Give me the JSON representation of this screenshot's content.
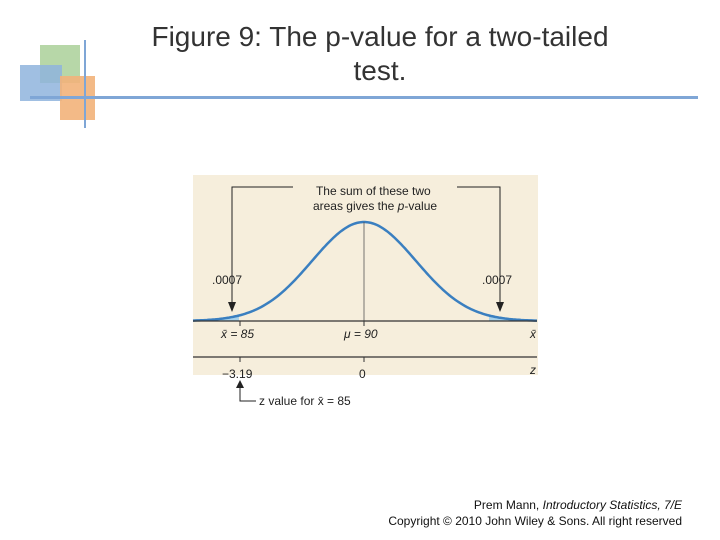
{
  "title": "Figure 9: The p-value for a two-tailed test.",
  "figure": {
    "callout": {
      "line1": "The sum of these two",
      "line2_start": "areas gives the ",
      "line2_italic": "p",
      "line2_end": "-value"
    },
    "left_area": ".0007",
    "right_area": ".0007",
    "x_axis": {
      "left_label": "x̄ = 85",
      "center_label": "μ = 90",
      "end_label": "x̄"
    },
    "z_axis": {
      "left_label": "−3.19",
      "center_label": "0",
      "end_label": "z"
    },
    "z_note": "z value for x̄ = 85"
  },
  "footer": {
    "author": "Prem Mann, ",
    "book": "Introductory Statistics, 7/E",
    "copyright": "Copyright © 2010 John Wiley & Sons. All right reserved"
  }
}
